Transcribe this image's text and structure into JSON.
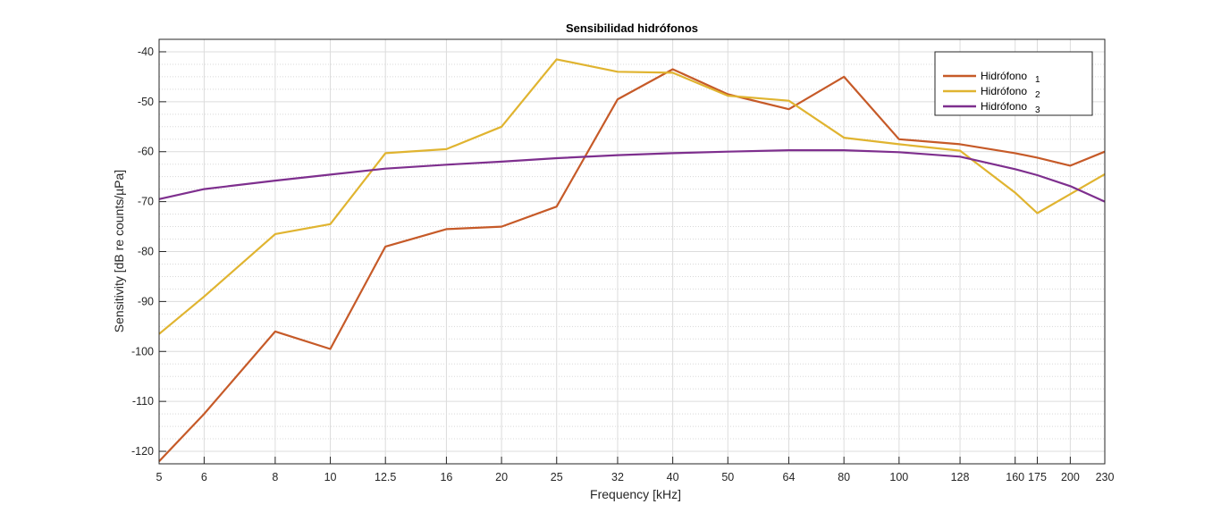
{
  "chart_data": {
    "type": "line",
    "title": "Sensibilidad hidrófonos",
    "xlabel": "Frequency [kHz]",
    "ylabel": "Sensitivity [dB re counts/µPa]",
    "x_scale": "log",
    "xlim": [
      5,
      230
    ],
    "ylim": [
      -122.5,
      -37.5
    ],
    "x_ticks": [
      5,
      6,
      8,
      10,
      12.5,
      16,
      20,
      25,
      32,
      40,
      50,
      64,
      80,
      100,
      128,
      160,
      175,
      200,
      230
    ],
    "x_tick_labels": [
      "5",
      "6",
      "8",
      "10",
      "12.5",
      "16",
      "20",
      "25",
      "32",
      "40",
      "50",
      "64",
      "80",
      "100",
      "128",
      "160",
      "175",
      "200",
      "230"
    ],
    "y_ticks": [
      -120,
      -110,
      -100,
      -90,
      -80,
      -70,
      -60,
      -50,
      -40
    ],
    "y_tick_labels": [
      "-120",
      "-110",
      "-100",
      "-90",
      "-80",
      "-70",
      "-60",
      "-50",
      "-40"
    ],
    "grid": true,
    "minor_grid": true,
    "legend_position": "top-right",
    "series": [
      {
        "name": "Hidrófono",
        "label_suffix": "1",
        "color": "#c65a28",
        "x": [
          5,
          6,
          8,
          10,
          12.5,
          16,
          20,
          25,
          32,
          40,
          50,
          64,
          80,
          100,
          128,
          160,
          175,
          200,
          230
        ],
        "y": [
          -122,
          -112.5,
          -96,
          -99.5,
          -79,
          -75.5,
          -75,
          -71,
          -49.5,
          -43.5,
          -48.5,
          -51.5,
          -45,
          -57.5,
          -58.5,
          -60.3,
          -61.2,
          -62.8,
          -60
        ]
      },
      {
        "name": "Hidrófono",
        "label_suffix": "2",
        "color": "#e0b430",
        "x": [
          5,
          6,
          8,
          10,
          12.5,
          16,
          20,
          25,
          32,
          40,
          50,
          64,
          80,
          100,
          128,
          160,
          175,
          200,
          230
        ],
        "y": [
          -96.5,
          -89,
          -76.5,
          -74.5,
          -60.3,
          -59.5,
          -55,
          -41.5,
          -44,
          -44.2,
          -48.8,
          -49.8,
          -57.2,
          -58.5,
          -59.8,
          -68.2,
          -72.3,
          -68.5,
          -64.5
        ]
      },
      {
        "name": "Hidrófono",
        "label_suffix": "3",
        "color": "#7e2f8e",
        "x": [
          5,
          6,
          8,
          10,
          12.5,
          16,
          20,
          25,
          32,
          40,
          50,
          64,
          80,
          100,
          128,
          160,
          175,
          200,
          230
        ],
        "y": [
          -69.5,
          -67.5,
          -65.8,
          -64.6,
          -63.4,
          -62.6,
          -62,
          -61.3,
          -60.7,
          -60.3,
          -60,
          -59.7,
          -59.7,
          -60.1,
          -61,
          -63.5,
          -64.7,
          -66.9,
          -70
        ]
      }
    ]
  }
}
